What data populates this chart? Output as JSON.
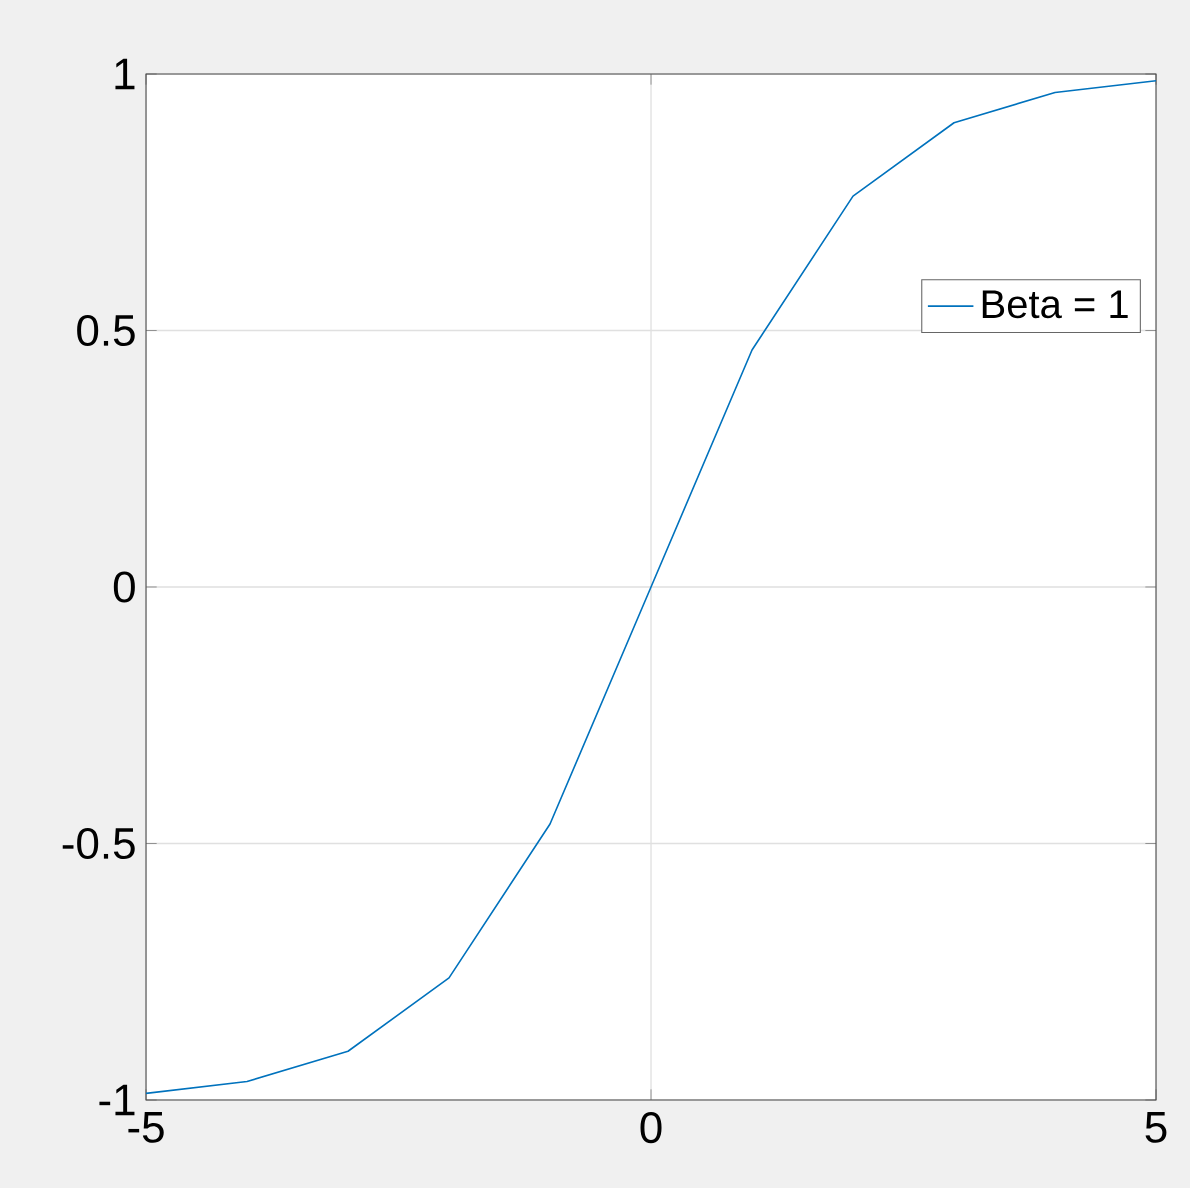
{
  "chart_data": {
    "type": "line",
    "x": [
      -5,
      -4,
      -3,
      -2,
      -1,
      0,
      1,
      2,
      3,
      4,
      5
    ],
    "series": [
      {
        "name": "Beta = 1",
        "color": "#0072bd",
        "values": [
          -0.987,
          -0.964,
          -0.905,
          -0.762,
          -0.462,
          0,
          0.462,
          0.762,
          0.905,
          0.964,
          0.987
        ]
      }
    ],
    "xlim": [
      -5,
      5
    ],
    "ylim": [
      -1,
      1
    ],
    "xticks": [
      -5,
      0,
      5
    ],
    "yticks": [
      -1,
      -0.5,
      0,
      0.5,
      1
    ],
    "grid": true,
    "legend": "top right",
    "marker": "none",
    "line_style": "solid"
  }
}
